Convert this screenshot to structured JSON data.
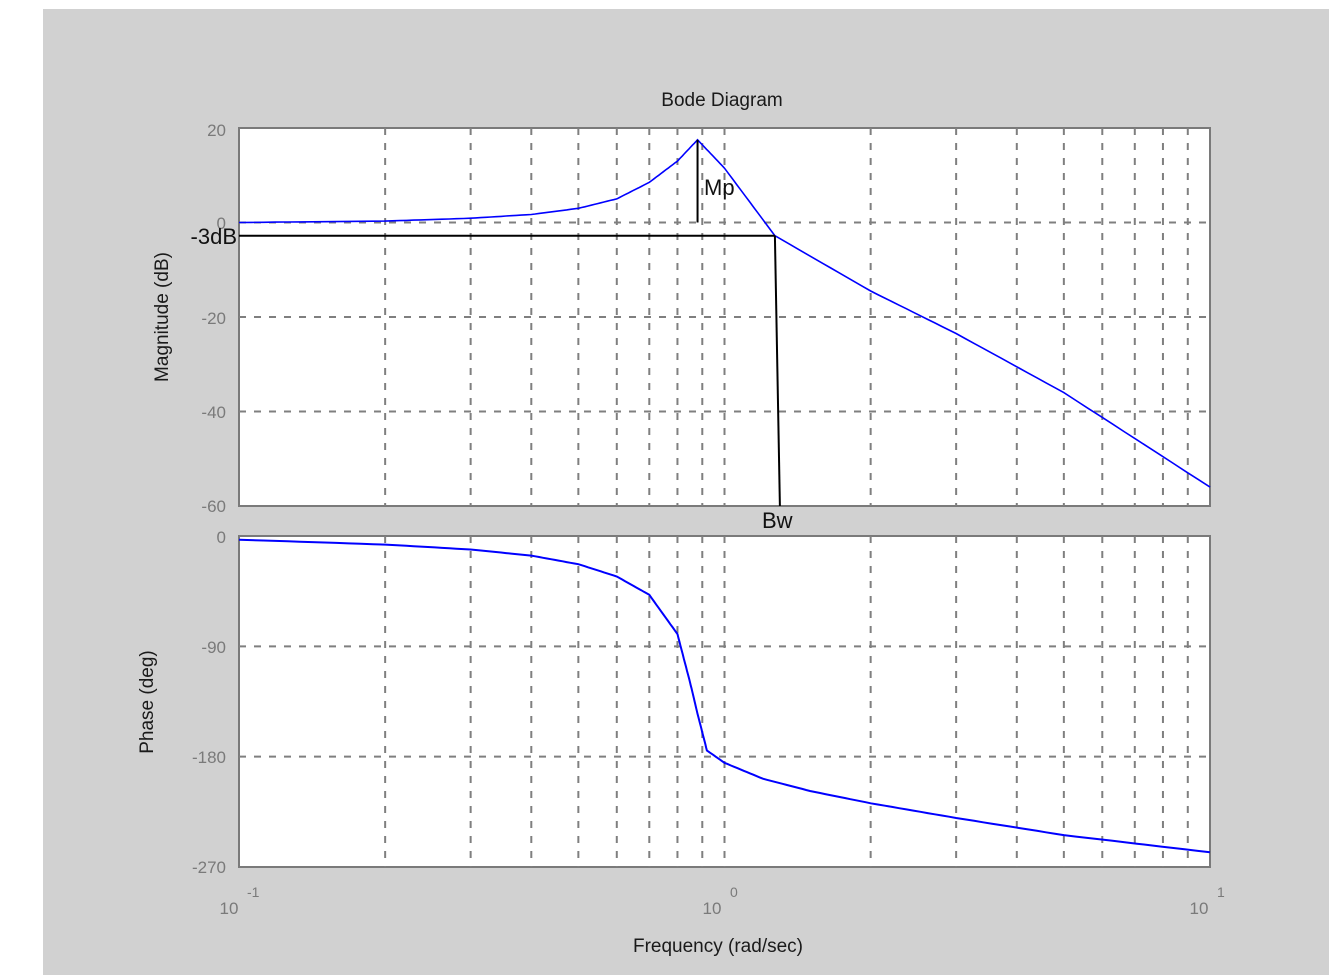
{
  "chart_data": [
    {
      "type": "line",
      "title": "Bode Diagram",
      "xlabel": "Frequency  (rad/sec)",
      "ylabel": "Magnitude (dB)",
      "xscale": "log",
      "xlim": [
        0.1,
        10
      ],
      "ylim": [
        -60,
        20
      ],
      "yticks": [
        20,
        0,
        -20,
        -40,
        -60
      ],
      "xticks": [
        "10^-1",
        "10^0",
        "10^1"
      ],
      "grid": true,
      "series": [
        {
          "name": "magnitude",
          "color": "#0000ff",
          "x": [
            0.1,
            0.2,
            0.3,
            0.4,
            0.5,
            0.6,
            0.7,
            0.8,
            0.88,
            1.0,
            1.27,
            2,
            3,
            5,
            10
          ],
          "y": [
            0.0,
            0.3,
            0.9,
            1.7,
            3.0,
            5.0,
            8.5,
            13.0,
            17.5,
            11.5,
            -2.8,
            -14.5,
            -23.5,
            -36,
            -56
          ]
        }
      ],
      "annotations": [
        {
          "text": "Mp",
          "x": 0.88,
          "y_from": 0,
          "y_to": 17.5
        },
        {
          "text": "-3dB",
          "y": -2.8,
          "x_from": 0.1,
          "x_to": 1.27
        },
        {
          "text": "Bw",
          "x": 1.27,
          "y_from": -2.8,
          "y_to": -60
        }
      ]
    },
    {
      "type": "line",
      "xlabel": "Frequency  (rad/sec)",
      "ylabel": "Phase (deg)",
      "xscale": "log",
      "xlim": [
        0.1,
        10
      ],
      "ylim": [
        -270,
        0
      ],
      "yticks": [
        0,
        -90,
        -180,
        -270
      ],
      "xticks": [
        "10^-1",
        "10^0",
        "10^1"
      ],
      "grid": true,
      "series": [
        {
          "name": "phase",
          "color": "#0000ff",
          "x": [
            0.1,
            0.2,
            0.3,
            0.4,
            0.5,
            0.6,
            0.7,
            0.8,
            0.85,
            0.88,
            0.92,
            1.0,
            1.2,
            1.5,
            2,
            3,
            5,
            10
          ],
          "y": [
            -3,
            -7,
            -11,
            -16,
            -23,
            -33,
            -48,
            -80,
            -120,
            -145,
            -175,
            -185,
            -198,
            -208,
            -218,
            -230,
            -244,
            -258
          ]
        }
      ]
    }
  ],
  "figure": {
    "title": "Bode Diagram",
    "mag_ylabel": "Magnitude (dB)",
    "phase_ylabel": "Phase (deg)",
    "xlabel": "Frequency  (rad/sec)",
    "mag_ticks": [
      "20",
      "0",
      "-20",
      "-40",
      "-60"
    ],
    "phase_ticks": [
      "0",
      "-90",
      "-180",
      "-270"
    ],
    "x_tick_base": "10",
    "x_tick_exps": [
      "-1",
      "0",
      "1"
    ],
    "ann_mp": "Mp",
    "ann_3db": "-3dB",
    "ann_bw": "Bw",
    "colors": {
      "background": "#d1d1d1",
      "axes": "#ffffff",
      "curve": "#0000ff",
      "grid": "#7f7f7f",
      "marker": "#000000"
    }
  }
}
